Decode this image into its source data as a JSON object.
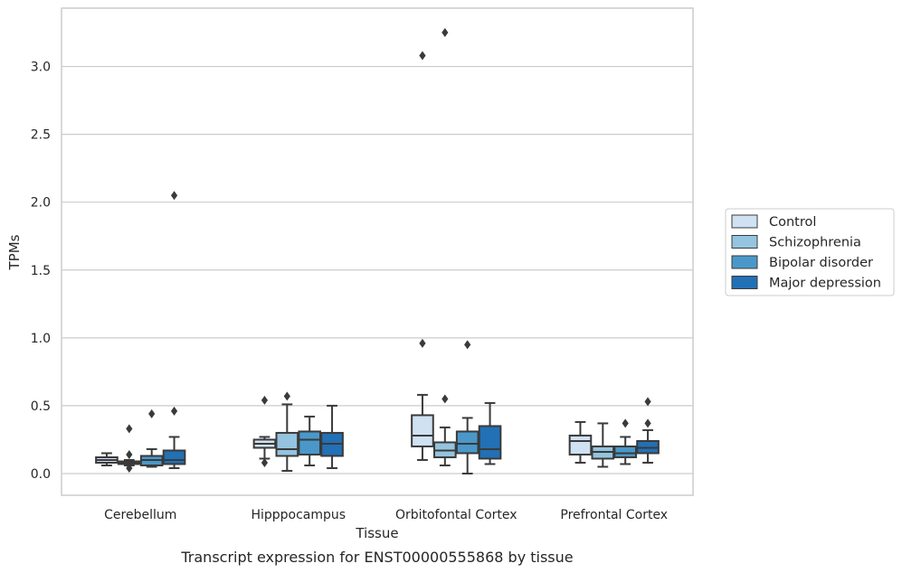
{
  "chart_data": {
    "type": "box",
    "xlabel": "Tissue",
    "ylabel": "TPMs",
    "caption": "Transcript expression for ENST00000555868 by tissue",
    "ylim": [
      -0.16,
      3.43
    ],
    "yticks": [
      0.0,
      0.5,
      1.0,
      1.5,
      2.0,
      2.5,
      3.0
    ],
    "ytick_labels": [
      "0.0",
      "0.5",
      "1.0",
      "1.5",
      "2.0",
      "2.5",
      "3.0"
    ],
    "grid": "horizontal",
    "legend_position": "right",
    "categories": [
      "Cerebellum",
      "Hipppocampus",
      "Orbitofontal Cortex",
      "Prefrontal Cortex"
    ],
    "series": [
      {
        "name": "Control",
        "color": "#d0e1f2",
        "boxes": [
          {
            "whislo": 0.06,
            "q1": 0.08,
            "med": 0.1,
            "q3": 0.12,
            "whishi": 0.15,
            "fliers": []
          },
          {
            "whislo": 0.11,
            "q1": 0.19,
            "med": 0.22,
            "q3": 0.25,
            "whishi": 0.27,
            "fliers": [
              0.54,
              0.08
            ]
          },
          {
            "whislo": 0.1,
            "q1": 0.2,
            "med": 0.28,
            "q3": 0.43,
            "whishi": 0.58,
            "fliers": [
              3.08,
              0.96
            ]
          },
          {
            "whislo": 0.08,
            "q1": 0.14,
            "med": 0.24,
            "q3": 0.28,
            "whishi": 0.38,
            "fliers": []
          }
        ]
      },
      {
        "name": "Schizophrenia",
        "color": "#94c4df",
        "boxes": [
          {
            "whislo": 0.06,
            "q1": 0.07,
            "med": 0.08,
            "q3": 0.09,
            "whishi": 0.1,
            "fliers": [
              0.33,
              0.14,
              0.04
            ]
          },
          {
            "whislo": 0.02,
            "q1": 0.13,
            "med": 0.18,
            "q3": 0.3,
            "whishi": 0.51,
            "fliers": [
              0.57
            ]
          },
          {
            "whislo": 0.06,
            "q1": 0.12,
            "med": 0.17,
            "q3": 0.23,
            "whishi": 0.34,
            "fliers": [
              3.25,
              0.55
            ]
          },
          {
            "whislo": 0.05,
            "q1": 0.11,
            "med": 0.16,
            "q3": 0.2,
            "whishi": 0.37,
            "fliers": []
          }
        ]
      },
      {
        "name": "Bipolar disorder",
        "color": "#4a98c9",
        "boxes": [
          {
            "whislo": 0.05,
            "q1": 0.06,
            "med": 0.1,
            "q3": 0.13,
            "whishi": 0.18,
            "fliers": [
              0.44
            ]
          },
          {
            "whislo": 0.06,
            "q1": 0.14,
            "med": 0.25,
            "q3": 0.31,
            "whishi": 0.42,
            "fliers": []
          },
          {
            "whislo": 0.0,
            "q1": 0.15,
            "med": 0.22,
            "q3": 0.31,
            "whishi": 0.41,
            "fliers": [
              0.95
            ]
          },
          {
            "whislo": 0.07,
            "q1": 0.12,
            "med": 0.15,
            "q3": 0.2,
            "whishi": 0.27,
            "fliers": [
              0.37
            ]
          }
        ]
      },
      {
        "name": "Major depression",
        "color": "#2270b5",
        "boxes": [
          {
            "whislo": 0.04,
            "q1": 0.07,
            "med": 0.1,
            "q3": 0.17,
            "whishi": 0.27,
            "fliers": [
              2.05,
              0.46
            ]
          },
          {
            "whislo": 0.04,
            "q1": 0.13,
            "med": 0.22,
            "q3": 0.3,
            "whishi": 0.5,
            "fliers": []
          },
          {
            "whislo": 0.07,
            "q1": 0.11,
            "med": 0.18,
            "q3": 0.35,
            "whishi": 0.52,
            "fliers": []
          },
          {
            "whislo": 0.08,
            "q1": 0.15,
            "med": 0.19,
            "q3": 0.24,
            "whishi": 0.32,
            "fliers": [
              0.53,
              0.37
            ]
          }
        ]
      }
    ]
  }
}
